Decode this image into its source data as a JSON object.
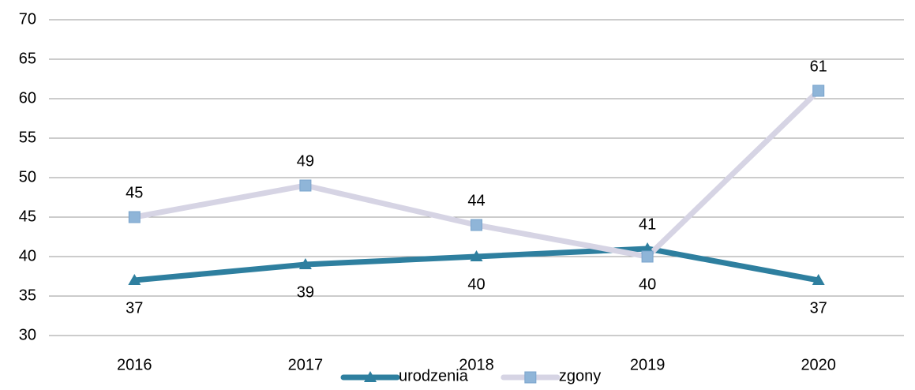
{
  "chart_data": {
    "type": "line",
    "categories": [
      "2016",
      "2017",
      "2018",
      "2019",
      "2020"
    ],
    "series": [
      {
        "name": "urodzenia",
        "color": "#2e7f9f",
        "marker": "triangle",
        "values": [
          37,
          39,
          40,
          41,
          37
        ]
      },
      {
        "name": "zgony",
        "color": "#d6d4e4",
        "marker_color": "#8fb5d8",
        "marker": "square",
        "values": [
          45,
          49,
          44,
          40,
          61
        ]
      }
    ],
    "ylim": [
      30,
      70
    ],
    "yticks": [
      30,
      35,
      40,
      45,
      50,
      55,
      60,
      65,
      70
    ],
    "grid": true,
    "legend": "bottom"
  }
}
